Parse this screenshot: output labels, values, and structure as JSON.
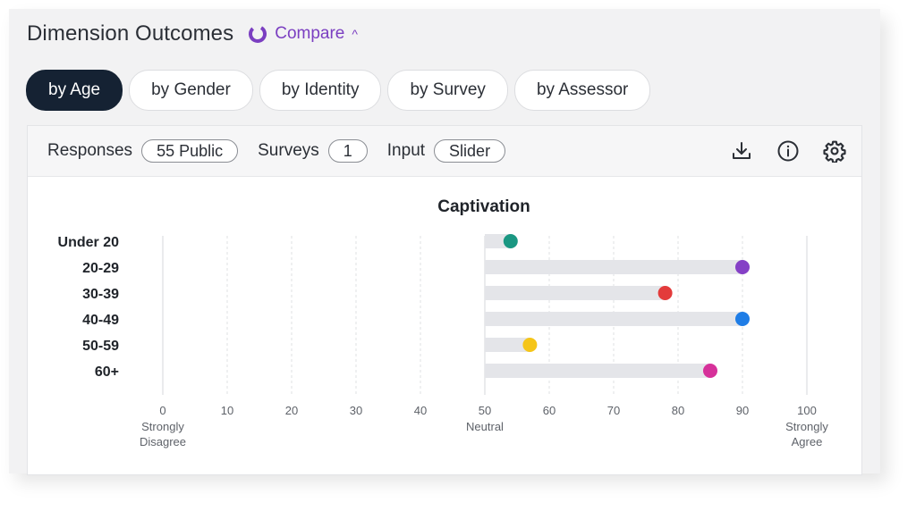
{
  "header": {
    "title": "Dimension Outcomes",
    "compare_label": "Compare"
  },
  "tabs": [
    {
      "label": "by Age",
      "active": true
    },
    {
      "label": "by Gender",
      "active": false
    },
    {
      "label": "by Identity",
      "active": false
    },
    {
      "label": "by Survey",
      "active": false
    },
    {
      "label": "by Assessor",
      "active": false
    }
  ],
  "toolbar": {
    "responses_label": "Responses",
    "responses_value": "55 Public",
    "surveys_label": "Surveys",
    "surveys_value": "1",
    "input_label": "Input",
    "input_value": "Slider",
    "icons": [
      "download-icon",
      "info-icon",
      "settings-icon"
    ]
  },
  "colors": {
    "accent": "#7b3fc1",
    "active_tab": "#152233",
    "bar_track": "#e4e5e9"
  },
  "chart_data": {
    "type": "bar",
    "orientation": "horizontal",
    "title": "Captivation",
    "baseline": 50,
    "categories": [
      "Under 20",
      "20-29",
      "30-39",
      "40-49",
      "50-59",
      "60+"
    ],
    "values": [
      54,
      90,
      78,
      90,
      57,
      85
    ],
    "colors": [
      "#1a9782",
      "#8540c6",
      "#e33b3b",
      "#1f7de6",
      "#f5c518",
      "#d6319a"
    ],
    "xlim": [
      0,
      100
    ],
    "xticks": [
      0,
      10,
      20,
      30,
      40,
      50,
      60,
      70,
      80,
      90,
      100
    ],
    "tick_labels": {
      "0": "Strongly Disagree",
      "50": "Neutral",
      "100": "Strongly Agree"
    },
    "grid": "vertical"
  }
}
